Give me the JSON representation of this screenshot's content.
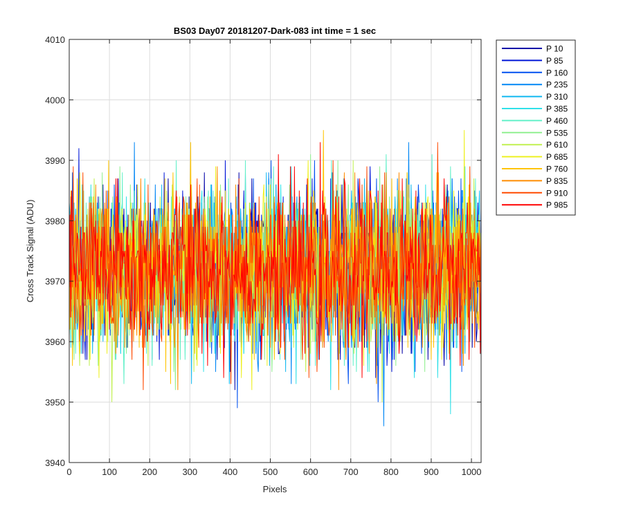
{
  "chart_data": {
    "type": "line",
    "title": "BS03 Day07 20181207-Dark-083 int time = 1 sec",
    "xlabel": "Pixels",
    "ylabel": "Cross Track Signal (ADU)",
    "xlim": [
      0,
      1024
    ],
    "ylim": [
      3940,
      4010
    ],
    "xticks": [
      0,
      100,
      200,
      300,
      400,
      500,
      600,
      700,
      800,
      900,
      1000
    ],
    "yticks": [
      3940,
      3950,
      3960,
      3970,
      3980,
      3990,
      4000,
      4010
    ],
    "grid": true,
    "legend_position": "outside-top-right",
    "noise": {
      "mean": 3972,
      "sigma": 6.5,
      "min": 3942,
      "max": 4004,
      "step": 2,
      "seed": 83
    },
    "series": [
      {
        "name": "P 10",
        "color": "#0000a8"
      },
      {
        "name": "P 85",
        "color": "#0016d8"
      },
      {
        "name": "P 160",
        "color": "#0050f0"
      },
      {
        "name": "P 235",
        "color": "#0086f5"
      },
      {
        "name": "P 310",
        "color": "#10b8f0"
      },
      {
        "name": "P 385",
        "color": "#30e0e8"
      },
      {
        "name": "P 460",
        "color": "#60f0c8"
      },
      {
        "name": "P 535",
        "color": "#90f090"
      },
      {
        "name": "P 610",
        "color": "#c0f050"
      },
      {
        "name": "P 685",
        "color": "#eef020"
      },
      {
        "name": "P 760",
        "color": "#ffc400"
      },
      {
        "name": "P 835",
        "color": "#ff8c00"
      },
      {
        "name": "P 910",
        "color": "#ff4a00"
      },
      {
        "name": "P 985",
        "color": "#ff0000"
      }
    ]
  }
}
